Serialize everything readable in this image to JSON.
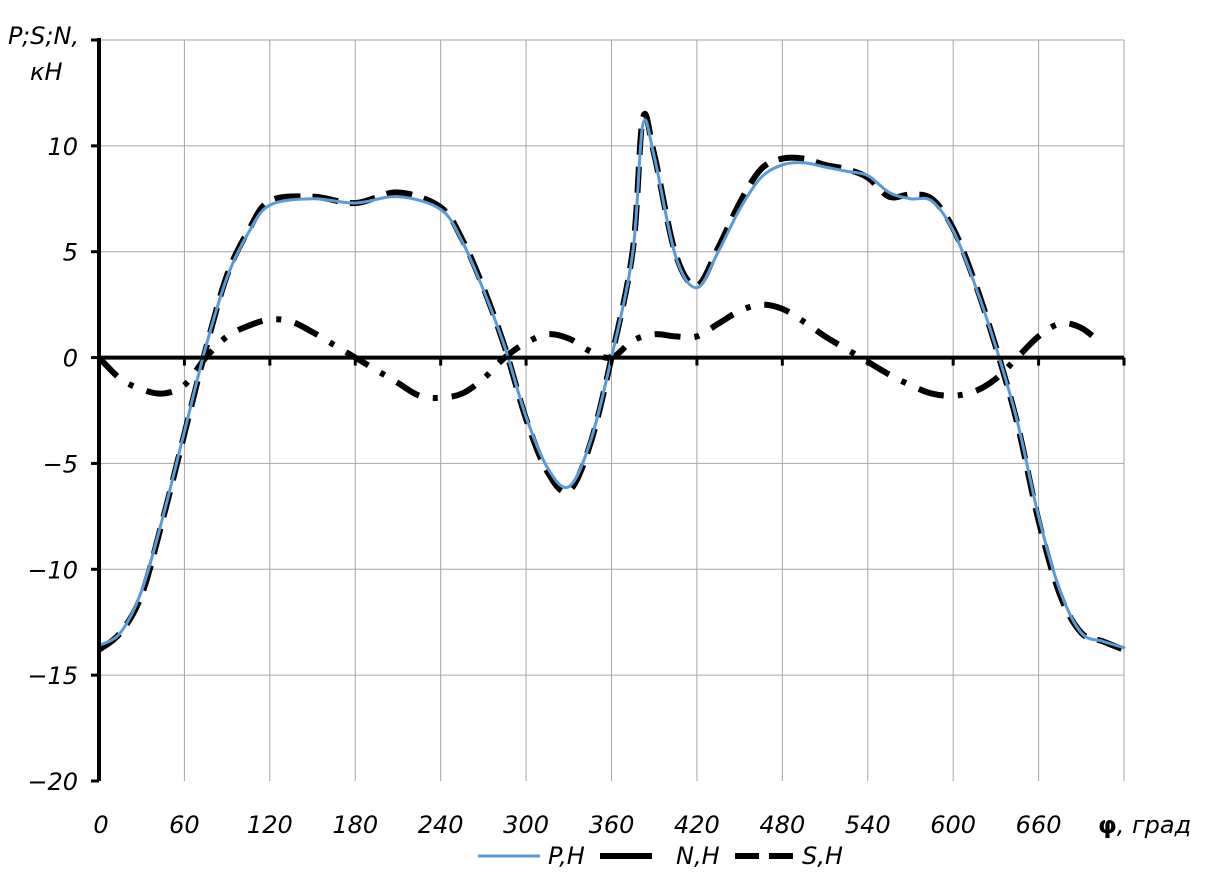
{
  "chart_data": {
    "type": "line",
    "ylabel_line1": "P;S;N,",
    "ylabel_line2": "кН",
    "xlabel_symbol": "φ",
    "xlabel_unit": ", град",
    "xlim": [
      0,
      720
    ],
    "ylim": [
      -20,
      15
    ],
    "x_ticks": [
      "0",
      "60",
      "120",
      "180",
      "240",
      "300",
      "360",
      "420",
      "480",
      "540",
      "600",
      "660"
    ],
    "y_ticks": [
      "10",
      "5",
      "0",
      "−5",
      "−10",
      "−15",
      "−20"
    ],
    "grid": true,
    "legend_position": "bottom",
    "series": [
      {
        "name": "P,H",
        "color": "#5B9BD5",
        "style": "solid",
        "x": [
          0,
          15,
          30,
          45,
          60,
          75,
          90,
          105,
          120,
          150,
          180,
          210,
          240,
          255,
          270,
          285,
          300,
          315,
          330,
          345,
          360,
          375,
          382,
          390,
          405,
          420,
          435,
          450,
          465,
          480,
          495,
          510,
          525,
          540,
          555,
          570,
          585,
          600,
          615,
          630,
          645,
          660,
          675,
          690,
          705,
          720
        ],
        "y": [
          -13.6,
          -13.0,
          -11.0,
          -7.5,
          -3.5,
          0.5,
          3.8,
          5.9,
          7.2,
          7.5,
          7.3,
          7.6,
          7.0,
          5.5,
          3.2,
          0.5,
          -2.8,
          -5.2,
          -6.1,
          -4.0,
          0.0,
          5.0,
          11.0,
          9.5,
          4.8,
          3.3,
          5.0,
          7.0,
          8.5,
          9.1,
          9.2,
          9.0,
          8.8,
          8.6,
          7.8,
          7.5,
          7.4,
          6.0,
          3.5,
          0.5,
          -3.0,
          -7.5,
          -11.0,
          -13.0,
          -13.4,
          -13.7
        ]
      },
      {
        "name": "N,H",
        "color": "#000000",
        "style": "dash-dot",
        "x": [
          0,
          15,
          30,
          45,
          60,
          75,
          90,
          105,
          120,
          135,
          150,
          165,
          180,
          195,
          210,
          225,
          240,
          255,
          270,
          285,
          300,
          315,
          330,
          345,
          360,
          375,
          390,
          405,
          420,
          435,
          450,
          465,
          480,
          495,
          510,
          525,
          540,
          555,
          570,
          585,
          600,
          615,
          630,
          645,
          660,
          675,
          690,
          705
        ],
        "y": [
          0,
          -1.0,
          -1.5,
          -1.7,
          -1.3,
          0.0,
          1.0,
          1.5,
          1.8,
          1.7,
          1.2,
          0.6,
          0.0,
          -0.6,
          -1.2,
          -1.8,
          -1.9,
          -1.7,
          -1.0,
          0.0,
          0.7,
          1.1,
          0.9,
          0.3,
          0,
          0.8,
          1.1,
          1.0,
          1.0,
          1.6,
          2.2,
          2.5,
          2.3,
          1.7,
          1.0,
          0.4,
          -0.2,
          -0.8,
          -1.3,
          -1.7,
          -1.8,
          -1.6,
          -1.0,
          0.0,
          1.0,
          1.6,
          1.4,
          0.6
        ]
      },
      {
        "name": "S,H",
        "color": "#000000",
        "style": "dashed",
        "x": [
          0,
          15,
          30,
          45,
          60,
          75,
          90,
          105,
          120,
          150,
          180,
          210,
          240,
          255,
          270,
          285,
          300,
          315,
          330,
          345,
          360,
          375,
          382,
          390,
          405,
          420,
          435,
          450,
          465,
          480,
          495,
          510,
          525,
          540,
          555,
          570,
          585,
          600,
          615,
          630,
          645,
          660,
          675,
          690,
          705,
          720
        ],
        "y": [
          -13.8,
          -13.0,
          -11.2,
          -7.6,
          -3.6,
          0.4,
          3.9,
          6.0,
          7.4,
          7.6,
          7.3,
          7.8,
          7.1,
          5.6,
          3.3,
          0.5,
          -2.9,
          -5.4,
          -6.3,
          -4.1,
          0.0,
          5.1,
          11.3,
          9.6,
          4.9,
          3.4,
          5.2,
          7.3,
          8.9,
          9.4,
          9.4,
          9.1,
          8.9,
          8.5,
          7.6,
          7.7,
          7.5,
          6.1,
          3.6,
          0.5,
          -3.1,
          -7.7,
          -11.2,
          -13.0,
          -13.4,
          -13.8
        ]
      }
    ]
  }
}
